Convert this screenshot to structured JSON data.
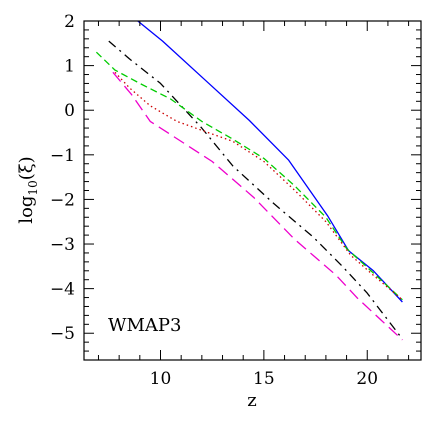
{
  "chart_data": {
    "type": "line",
    "title": "",
    "annotation": "WMAP3",
    "xlabel": "z",
    "ylabel_main": "log",
    "ylabel_sub": "10",
    "ylabel_arg": "(ξ)",
    "xlim": [
      6.3,
      22.6
    ],
    "ylim": [
      -5.6,
      2.0
    ],
    "x_ticks": [
      10,
      15,
      20
    ],
    "x_tick_labels": [
      "10",
      "15",
      "20"
    ],
    "y_ticks": [
      2,
      1,
      0,
      -1,
      -2,
      -3,
      -4,
      -5
    ],
    "y_tick_labels": [
      "2",
      "1",
      "0",
      "−1",
      "−2",
      "−3",
      "−4",
      "−5"
    ],
    "grid": false,
    "legend": "none",
    "series": [
      {
        "color": "#0000ff",
        "dash": "",
        "x": [
          8.9,
          10.1,
          12.2,
          14.3,
          16.2,
          18.1,
          19.1,
          20.3,
          21.7
        ],
        "y": [
          2.0,
          1.55,
          0.66,
          -0.23,
          -1.12,
          -2.38,
          -3.15,
          -3.6,
          -4.3
        ]
      },
      {
        "color": "#000000",
        "dash": "9,5,2,5",
        "x": [
          7.5,
          8.5,
          10.0,
          12.0,
          13.5,
          15.5,
          17.4,
          18.8,
          20.0,
          21.7
        ],
        "y": [
          1.55,
          1.15,
          0.6,
          -0.4,
          -1.25,
          -2.1,
          -2.85,
          -3.5,
          -4.1,
          -5.13
        ]
      },
      {
        "color": "#00cc00",
        "dash": "7,4",
        "x": [
          6.9,
          7.8,
          9.0,
          10.5,
          12.0,
          13.5,
          15.0,
          16.5,
          18.0,
          19.0,
          20.3,
          21.7
        ],
        "y": [
          1.3,
          0.9,
          0.6,
          0.25,
          -0.25,
          -0.65,
          -1.08,
          -1.7,
          -2.4,
          -3.1,
          -3.65,
          -4.25
        ]
      },
      {
        "color": "#cc0000",
        "dash": "1.5,3",
        "x": [
          7.8,
          8.5,
          9.5,
          10.8,
          12.0,
          13.5,
          15.0,
          16.5,
          18.0,
          19.2,
          20.3,
          21.7
        ],
        "y": [
          0.85,
          0.5,
          0.1,
          -0.25,
          -0.45,
          -0.7,
          -1.15,
          -1.8,
          -2.5,
          -3.25,
          -3.7,
          -4.25
        ]
      },
      {
        "color": "#ee00cc",
        "dash": "12,6",
        "x": [
          7.7,
          8.6,
          9.5,
          10.5,
          12.5,
          14.5,
          16.5,
          18.5,
          19.5,
          21.7
        ],
        "y": [
          0.85,
          0.35,
          -0.25,
          -0.55,
          -1.15,
          -1.95,
          -2.9,
          -3.7,
          -4.2,
          -5.15
        ]
      }
    ]
  }
}
